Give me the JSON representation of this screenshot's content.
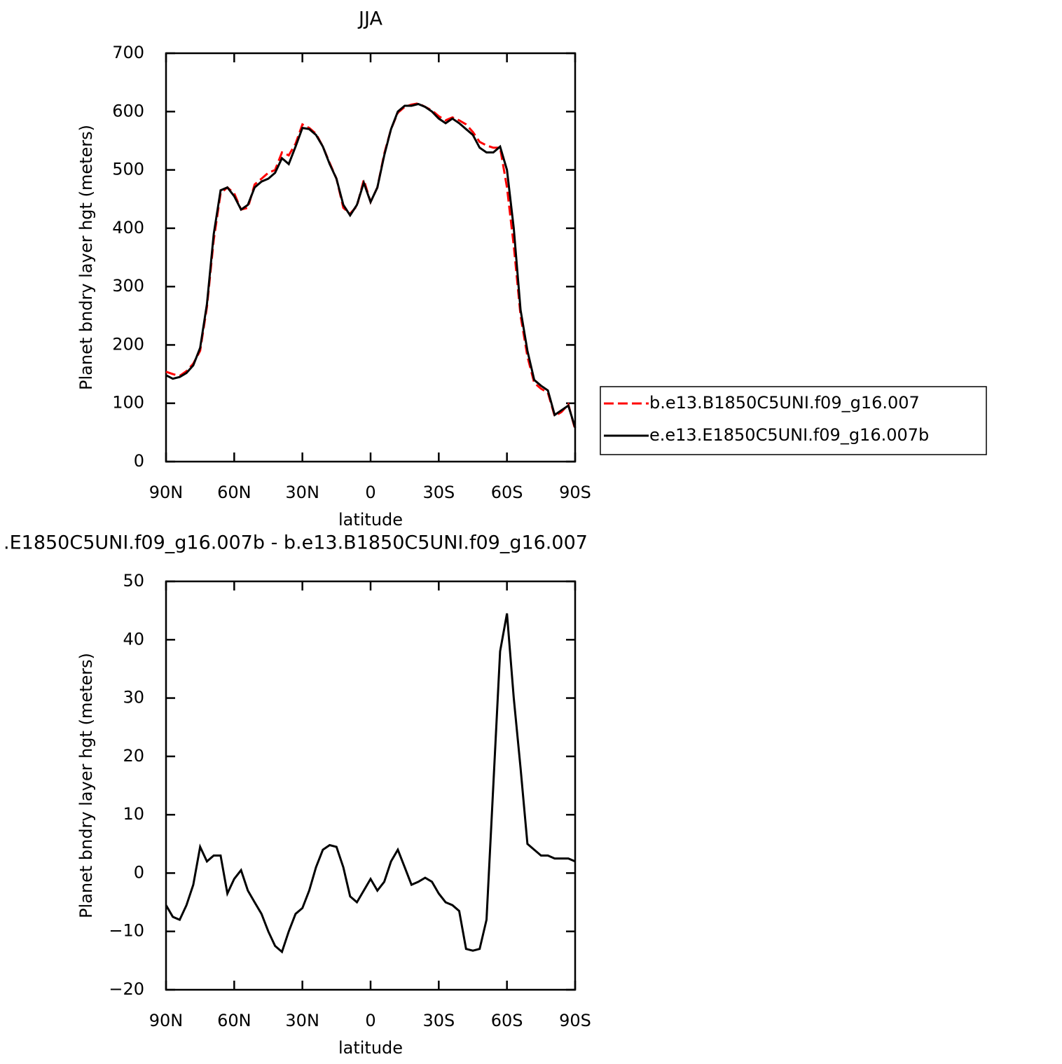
{
  "chart_data": [
    {
      "type": "line",
      "title": "JJA",
      "xlabel": "latitude",
      "ylabel": "Planet bndry layer hgt (meters)",
      "x": [
        90,
        87,
        84,
        81,
        78,
        75,
        72,
        69,
        66,
        63,
        60,
        57,
        54,
        51,
        48,
        45,
        42,
        39,
        36,
        33,
        30,
        27,
        24,
        21,
        18,
        15,
        12,
        9,
        6,
        3,
        0,
        -3,
        -6,
        -9,
        -12,
        -15,
        -18,
        -21,
        -24,
        -27,
        -30,
        -33,
        -36,
        -39,
        -42,
        -45,
        -48,
        -51,
        -54,
        -57,
        -60,
        -63,
        -66,
        -69,
        -72,
        -75,
        -78,
        -81,
        -84,
        -87,
        -90
      ],
      "xlim": [
        90,
        -90
      ],
      "xticks": [
        {
          "value": 90,
          "label": "90N"
        },
        {
          "value": 60,
          "label": "60N"
        },
        {
          "value": 30,
          "label": "30N"
        },
        0,
        {
          "value": -30,
          "label": "30S"
        },
        {
          "value": -60,
          "label": "60S"
        },
        {
          "value": -90,
          "label": "90S"
        }
      ],
      "ylim": [
        0,
        700
      ],
      "yticks": [
        0,
        100,
        200,
        300,
        400,
        500,
        600,
        700
      ],
      "legend": "right",
      "series": [
        {
          "name": "b.e13.B1850C5UNI.f09_g16.007",
          "color": "#ff0000",
          "line_style": "dashed",
          "values": [
            154,
            150,
            147,
            155,
            168,
            190,
            265,
            380,
            460,
            470,
            460,
            432,
            435,
            475,
            485,
            495,
            500,
            530,
            525,
            545,
            578,
            572,
            562,
            540,
            512,
            485,
            435,
            425,
            438,
            483,
            445,
            470,
            528,
            570,
            598,
            608,
            612,
            614,
            608,
            602,
            592,
            585,
            590,
            585,
            578,
            565,
            548,
            542,
            538,
            538,
            470,
            370,
            250,
            180,
            135,
            125,
            118,
            78,
            85,
            98,
            55
          ]
        },
        {
          "name": "e.e13.E1850C5UNI.f09_g16.007b",
          "color": "#000000",
          "line_style": "solid",
          "values": [
            148,
            142,
            145,
            152,
            165,
            195,
            270,
            390,
            465,
            470,
            455,
            432,
            440,
            470,
            480,
            485,
            495,
            520,
            510,
            540,
            572,
            570,
            560,
            540,
            510,
            485,
            440,
            422,
            440,
            478,
            445,
            470,
            525,
            570,
            600,
            610,
            610,
            613,
            608,
            600,
            588,
            580,
            588,
            580,
            570,
            560,
            538,
            530,
            530,
            540,
            500,
            400,
            260,
            190,
            140,
            130,
            122,
            80,
            88,
            96,
            58
          ]
        }
      ]
    },
    {
      "type": "line",
      "title": ".E1850C5UNI.f09_g16.007b - b.e13.B1850C5UNI.f09_g16.007",
      "xlabel": "latitude",
      "ylabel": "Planet bndry layer hgt (meters)",
      "x": [
        90,
        87,
        84,
        81,
        78,
        75,
        72,
        69,
        66,
        63,
        60,
        57,
        54,
        51,
        48,
        45,
        42,
        39,
        36,
        33,
        30,
        27,
        24,
        21,
        18,
        15,
        12,
        9,
        6,
        3,
        0,
        -3,
        -6,
        -9,
        -12,
        -15,
        -18,
        -21,
        -24,
        -27,
        -30,
        -33,
        -36,
        -39,
        -42,
        -45,
        -48,
        -51,
        -54,
        -57,
        -60,
        -63,
        -66,
        -69,
        -72,
        -75,
        -78,
        -81,
        -84,
        -87,
        -90
      ],
      "xlim": [
        90,
        -90
      ],
      "xticks": [
        {
          "value": 90,
          "label": "90N"
        },
        {
          "value": 60,
          "label": "60N"
        },
        {
          "value": 30,
          "label": "30N"
        },
        0,
        {
          "value": -30,
          "label": "30S"
        },
        {
          "value": -60,
          "label": "60S"
        },
        {
          "value": -90,
          "label": "90S"
        }
      ],
      "ylim": [
        -20,
        50
      ],
      "yticks": [
        {
          "value": -20,
          "label": "−20"
        },
        {
          "value": -10,
          "label": "−10"
        },
        0,
        10,
        20,
        30,
        40,
        50
      ],
      "series": [
        {
          "color": "#000000",
          "line_style": "solid",
          "values": [
            -5.5,
            -7.5,
            -8,
            -5.5,
            -2,
            4.5,
            2,
            3,
            3,
            -3.5,
            -1,
            0.5,
            -3,
            -5,
            -7,
            -10,
            -12.5,
            -13.5,
            -10,
            -7,
            -6,
            -3,
            1,
            4,
            4.8,
            4.5,
            1,
            -4,
            -5,
            -3,
            -1,
            -3,
            -1.5,
            2,
            4,
            1,
            -2,
            -1.5,
            -0.8,
            -1.5,
            -3.5,
            -5,
            -5.5,
            -6.5,
            -13,
            -13.3,
            -13,
            -8,
            15,
            38,
            44.5,
            30,
            18,
            5,
            4,
            3,
            3,
            2.5,
            2.5,
            2.5,
            2
          ]
        }
      ]
    }
  ]
}
